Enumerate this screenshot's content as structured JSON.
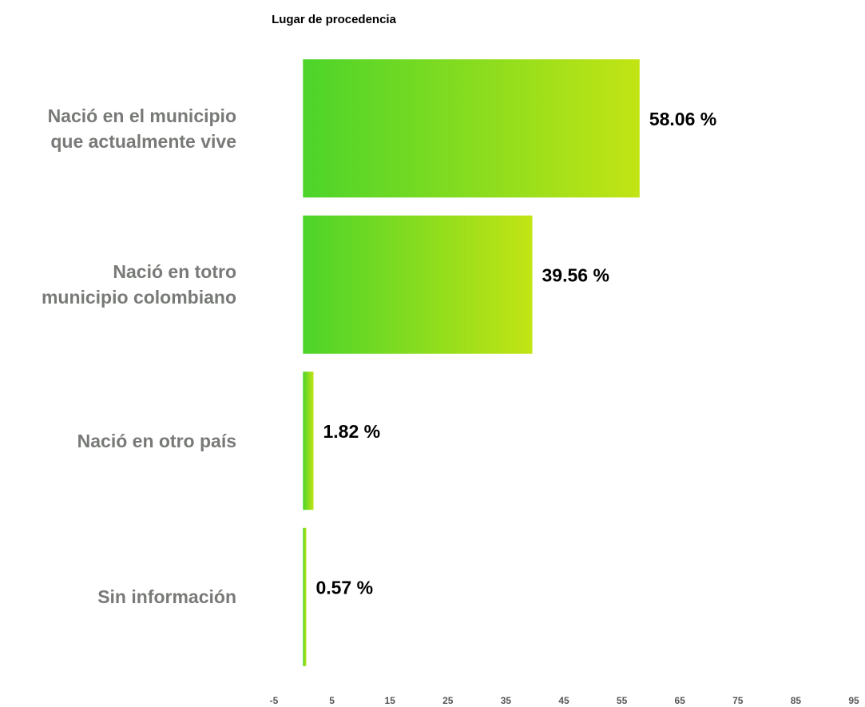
{
  "chart_data": {
    "type": "barh",
    "title": "Lugar de procedencia",
    "categories": [
      "Nació en el municipio\nque actualmente vive",
      "Nació en totro\nmunicipio colombiano",
      "Nació en otro país",
      "Sin información"
    ],
    "values": [
      58.06,
      39.56,
      1.82,
      0.57
    ],
    "value_labels": [
      "58.06 %",
      "39.56 %",
      "1.82 %",
      "0.57 %"
    ],
    "gradient": [
      "#4cd42a",
      "#c2e414"
    ],
    "xlim": [
      -5,
      95
    ],
    "xticks": [
      -5,
      5,
      15,
      25,
      35,
      45,
      55,
      65,
      75,
      85,
      95
    ],
    "grid": false
  }
}
